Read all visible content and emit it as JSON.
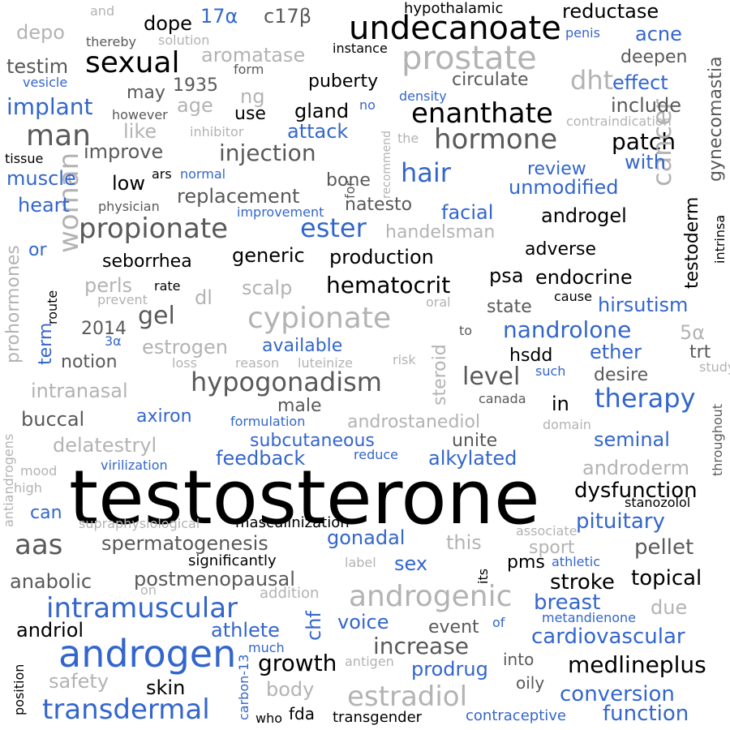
{
  "colors": {
    "black": "#000000",
    "blue": "#3366cc",
    "dark_gray": "#595959",
    "light_gray": "#b3b3b3"
  },
  "words": [
    {
      "text": "testosterone",
      "color": "black"
    },
    {
      "text": "androgen",
      "color": "blue"
    },
    {
      "text": "undecanoate",
      "color": "black"
    },
    {
      "text": "prostate",
      "color": "light_gray"
    },
    {
      "text": "sexual",
      "color": "black"
    },
    {
      "text": "man",
      "color": "dark_gray"
    },
    {
      "text": "enanthate",
      "color": "black"
    },
    {
      "text": "hormone",
      "color": "dark_gray"
    },
    {
      "text": "propionate",
      "color": "dark_gray"
    },
    {
      "text": "cypionate",
      "color": "light_gray"
    },
    {
      "text": "hypogonadism",
      "color": "dark_gray"
    },
    {
      "text": "androgenic",
      "color": "light_gray"
    },
    {
      "text": "intramuscular",
      "color": "blue"
    },
    {
      "text": "transdermal",
      "color": "blue"
    },
    {
      "text": "estradiol",
      "color": "light_gray"
    },
    {
      "text": "therapy",
      "color": "blue"
    },
    {
      "text": "aas",
      "color": "dark_gray"
    },
    {
      "text": "woman",
      "color": "light_gray"
    },
    {
      "text": "hair",
      "color": "blue"
    },
    {
      "text": "ester",
      "color": "blue"
    },
    {
      "text": "dht",
      "color": "light_gray"
    },
    {
      "text": "implant",
      "color": "blue"
    },
    {
      "text": "injection",
      "color": "dark_gray"
    },
    {
      "text": "patch",
      "color": "black"
    },
    {
      "text": "cancer",
      "color": "light_gray"
    },
    {
      "text": "level",
      "color": "dark_gray"
    },
    {
      "text": "hematocrit",
      "color": "black"
    },
    {
      "text": "nandrolone",
      "color": "blue"
    },
    {
      "text": "increase",
      "color": "dark_gray"
    },
    {
      "text": "growth",
      "color": "black"
    },
    {
      "text": "medlineplus",
      "color": "black"
    },
    {
      "text": "cardiovascular",
      "color": "blue"
    },
    {
      "text": "conversion",
      "color": "blue"
    },
    {
      "text": "function",
      "color": "blue"
    },
    {
      "text": "dysfunction",
      "color": "black"
    },
    {
      "text": "pituitary",
      "color": "blue"
    },
    {
      "text": "topical",
      "color": "black"
    },
    {
      "text": "breast",
      "color": "blue"
    },
    {
      "text": "stroke",
      "color": "black"
    },
    {
      "text": "pellet",
      "color": "dark_gray"
    },
    {
      "text": "androderm",
      "color": "light_gray"
    },
    {
      "text": "seminal",
      "color": "blue"
    },
    {
      "text": "spermatogenesis",
      "color": "dark_gray"
    },
    {
      "text": "postmenopausal",
      "color": "dark_gray"
    },
    {
      "text": "anabolic",
      "color": "dark_gray"
    },
    {
      "text": "athlete",
      "color": "blue"
    },
    {
      "text": "andriol",
      "color": "black"
    },
    {
      "text": "safety",
      "color": "light_gray"
    },
    {
      "text": "skin",
      "color": "black"
    },
    {
      "text": "fda",
      "color": "black"
    },
    {
      "text": "transgender",
      "color": "black"
    },
    {
      "text": "contraceptive",
      "color": "blue"
    },
    {
      "text": "who",
      "color": "black"
    },
    {
      "text": "body",
      "color": "light_gray"
    },
    {
      "text": "prodrug",
      "color": "blue"
    },
    {
      "text": "oily",
      "color": "dark_gray"
    },
    {
      "text": "into",
      "color": "dark_gray"
    },
    {
      "text": "antigen",
      "color": "light_gray"
    },
    {
      "text": "voice",
      "color": "blue"
    },
    {
      "text": "event",
      "color": "dark_gray"
    },
    {
      "text": "of",
      "color": "blue"
    },
    {
      "text": "metandienone",
      "color": "blue"
    },
    {
      "text": "due",
      "color": "light_gray"
    },
    {
      "text": "chf",
      "color": "blue"
    },
    {
      "text": "much",
      "color": "blue"
    },
    {
      "text": "carbon-13",
      "color": "blue"
    },
    {
      "text": "position",
      "color": "black"
    },
    {
      "text": "addition",
      "color": "light_gray"
    },
    {
      "text": "on",
      "color": "light_gray"
    },
    {
      "text": "sex",
      "color": "blue"
    },
    {
      "text": "pms",
      "color": "black"
    },
    {
      "text": "athletic",
      "color": "blue"
    },
    {
      "text": "its",
      "color": "black"
    },
    {
      "text": "label",
      "color": "light_gray"
    },
    {
      "text": "significantly",
      "color": "black"
    },
    {
      "text": "gonadal",
      "color": "blue"
    },
    {
      "text": "this",
      "color": "light_gray"
    },
    {
      "text": "sport",
      "color": "light_gray"
    },
    {
      "text": "associate",
      "color": "light_gray"
    },
    {
      "text": "masculinization",
      "color": "black"
    },
    {
      "text": "supraphysiological",
      "color": "light_gray"
    },
    {
      "text": "stanozolol",
      "color": "black"
    },
    {
      "text": "can",
      "color": "blue"
    },
    {
      "text": "high",
      "color": "light_gray"
    },
    {
      "text": "mood",
      "color": "light_gray"
    },
    {
      "text": "antiandrogens",
      "color": "light_gray"
    },
    {
      "text": "virilization",
      "color": "blue"
    },
    {
      "text": "reduce",
      "color": "blue"
    },
    {
      "text": "feedback",
      "color": "blue"
    },
    {
      "text": "alkylated",
      "color": "blue"
    },
    {
      "text": "subcutaneous",
      "color": "blue"
    },
    {
      "text": "unite",
      "color": "dark_gray"
    },
    {
      "text": "delatestryl",
      "color": "light_gray"
    },
    {
      "text": "buccal",
      "color": "dark_gray"
    },
    {
      "text": "axiron",
      "color": "blue"
    },
    {
      "text": "formulation",
      "color": "blue"
    },
    {
      "text": "androstanediol",
      "color": "light_gray"
    },
    {
      "text": "domain",
      "color": "light_gray"
    },
    {
      "text": "throughout",
      "color": "dark_gray"
    },
    {
      "text": "male",
      "color": "dark_gray"
    },
    {
      "text": "in",
      "color": "black"
    },
    {
      "text": "canada",
      "color": "dark_gray"
    },
    {
      "text": "intranasal",
      "color": "light_gray"
    },
    {
      "text": "such",
      "color": "blue"
    },
    {
      "text": "desire",
      "color": "dark_gray"
    },
    {
      "text": "study",
      "color": "light_gray"
    },
    {
      "text": "notion",
      "color": "dark_gray"
    },
    {
      "text": "term",
      "color": "blue"
    },
    {
      "text": "prohormones",
      "color": "light_gray"
    },
    {
      "text": "estrogen",
      "color": "light_gray"
    },
    {
      "text": "available",
      "color": "blue"
    },
    {
      "text": "loss",
      "color": "light_gray"
    },
    {
      "text": "reason",
      "color": "light_gray"
    },
    {
      "text": "luteinize",
      "color": "light_gray"
    },
    {
      "text": "risk",
      "color": "light_gray"
    },
    {
      "text": "hsdd",
      "color": "black"
    },
    {
      "text": "ether",
      "color": "blue"
    },
    {
      "text": "trt",
      "color": "dark_gray"
    },
    {
      "text": "5α",
      "color": "light_gray"
    },
    {
      "text": "3α",
      "color": "blue"
    },
    {
      "text": "2014",
      "color": "dark_gray"
    },
    {
      "text": "gel",
      "color": "dark_gray"
    },
    {
      "text": "steroid",
      "color": "light_gray"
    },
    {
      "text": "to",
      "color": "dark_gray"
    },
    {
      "text": "state",
      "color": "dark_gray"
    },
    {
      "text": "hirsutism",
      "color": "blue"
    },
    {
      "text": "cause",
      "color": "black"
    },
    {
      "text": "oral",
      "color": "light_gray"
    },
    {
      "text": "perls",
      "color": "light_gray"
    },
    {
      "text": "rate",
      "color": "black"
    },
    {
      "text": "prevent",
      "color": "light_gray"
    },
    {
      "text": "route",
      "color": "black"
    },
    {
      "text": "dl",
      "color": "light_gray"
    },
    {
      "text": "scalp",
      "color": "light_gray"
    },
    {
      "text": "psa",
      "color": "black"
    },
    {
      "text": "endocrine",
      "color": "black"
    },
    {
      "text": "testoderm",
      "color": "black"
    },
    {
      "text": "intrinsa",
      "color": "black"
    },
    {
      "text": "adverse",
      "color": "black"
    },
    {
      "text": "production",
      "color": "black"
    },
    {
      "text": "generic",
      "color": "black"
    },
    {
      "text": "seborrhea",
      "color": "black"
    },
    {
      "text": "or",
      "color": "blue"
    },
    {
      "text": "handelsman",
      "color": "light_gray"
    },
    {
      "text": "natesto",
      "color": "dark_gray"
    },
    {
      "text": "facial",
      "color": "blue"
    },
    {
      "text": "androgel",
      "color": "black"
    },
    {
      "text": "unmodified",
      "color": "blue"
    },
    {
      "text": "review",
      "color": "blue"
    },
    {
      "text": "with",
      "color": "blue"
    },
    {
      "text": "gynecomastia",
      "color": "dark_gray"
    },
    {
      "text": "replacement",
      "color": "dark_gray"
    },
    {
      "text": "improvement",
      "color": "blue"
    },
    {
      "text": "physician",
      "color": "dark_gray"
    },
    {
      "text": "heart",
      "color": "blue"
    },
    {
      "text": "muscle",
      "color": "blue"
    },
    {
      "text": "low",
      "color": "black"
    },
    {
      "text": "bone",
      "color": "dark_gray"
    },
    {
      "text": "for",
      "color": "dark_gray"
    },
    {
      "text": "recommend",
      "color": "light_gray"
    },
    {
      "text": "ars",
      "color": "black"
    },
    {
      "text": "normal",
      "color": "blue"
    },
    {
      "text": "tissue",
      "color": "black"
    },
    {
      "text": "improve",
      "color": "dark_gray"
    },
    {
      "text": "like",
      "color": "light_gray"
    },
    {
      "text": "inhibitor",
      "color": "light_gray"
    },
    {
      "text": "attack",
      "color": "blue"
    },
    {
      "text": "the",
      "color": "light_gray"
    },
    {
      "text": "no",
      "color": "blue"
    },
    {
      "text": "gland",
      "color": "black"
    },
    {
      "text": "use",
      "color": "black"
    },
    {
      "text": "ng",
      "color": "light_gray"
    },
    {
      "text": "age",
      "color": "light_gray"
    },
    {
      "text": "however",
      "color": "dark_gray"
    },
    {
      "text": "1935",
      "color": "dark_gray"
    },
    {
      "text": "may",
      "color": "dark_gray"
    },
    {
      "text": "vesicle",
      "color": "blue"
    },
    {
      "text": "testim",
      "color": "dark_gray"
    },
    {
      "text": "form",
      "color": "dark_gray"
    },
    {
      "text": "puberty",
      "color": "black"
    },
    {
      "text": "density",
      "color": "blue"
    },
    {
      "text": "circulate",
      "color": "dark_gray"
    },
    {
      "text": "effect",
      "color": "blue"
    },
    {
      "text": "include",
      "color": "dark_gray"
    },
    {
      "text": "contraindication",
      "color": "light_gray"
    },
    {
      "text": "deepen",
      "color": "dark_gray"
    },
    {
      "text": "acne",
      "color": "blue"
    },
    {
      "text": "penis",
      "color": "blue"
    },
    {
      "text": "reductase",
      "color": "black"
    },
    {
      "text": "hypothalamic",
      "color": "black"
    },
    {
      "text": "aromatase",
      "color": "light_gray"
    },
    {
      "text": "instance",
      "color": "black"
    },
    {
      "text": "solution",
      "color": "light_gray"
    },
    {
      "text": "thereby",
      "color": "dark_gray"
    },
    {
      "text": "depo",
      "color": "light_gray"
    },
    {
      "text": "dope",
      "color": "black"
    },
    {
      "text": "17α",
      "color": "blue"
    },
    {
      "text": "c17β",
      "color": "dark_gray"
    },
    {
      "text": "and",
      "color": "light_gray"
    }
  ]
}
